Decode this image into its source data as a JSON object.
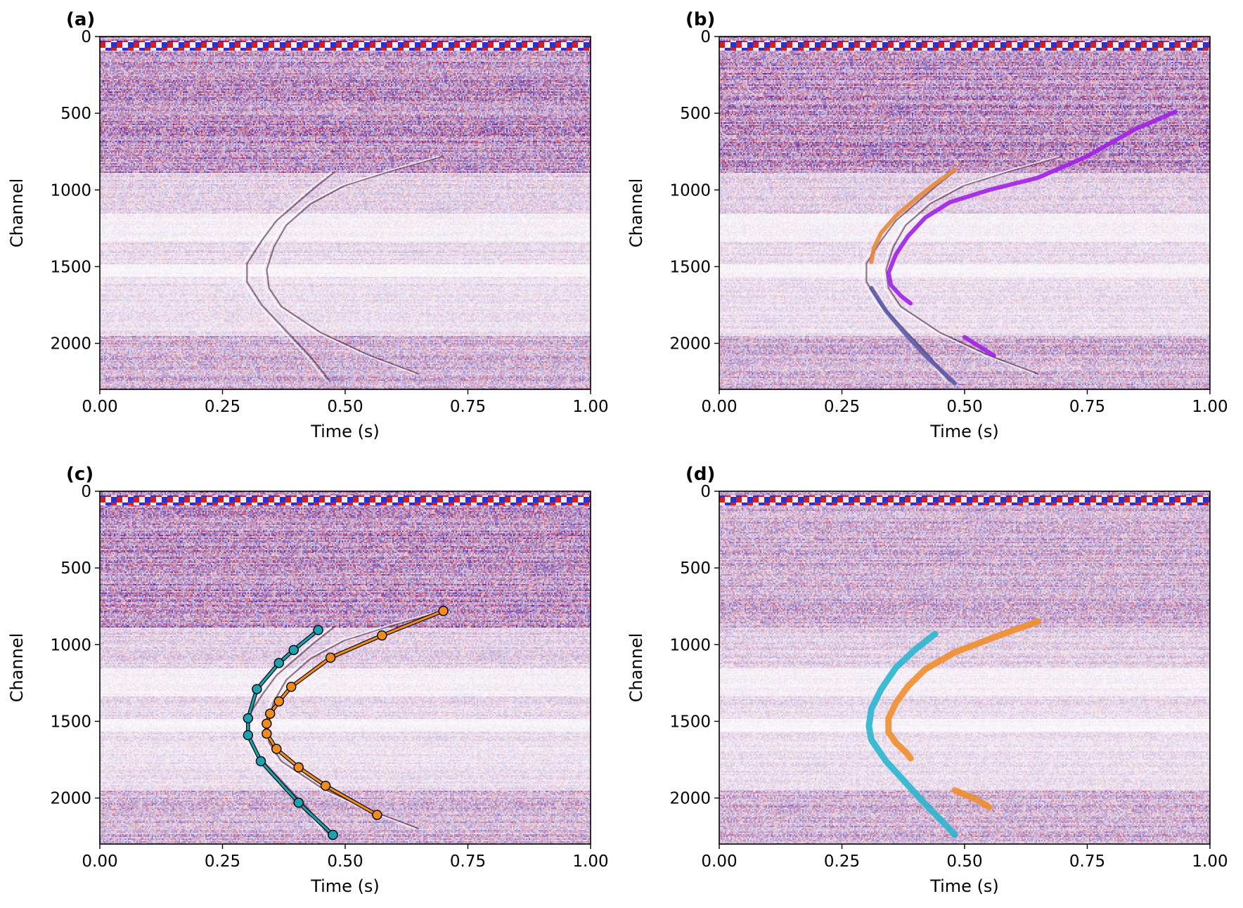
{
  "figure": {
    "background": "#ffffff",
    "seismic_colors": {
      "negative": "#2030d0",
      "neutral": "#ffffff",
      "positive": "#d01818",
      "tint": "#8a3a8f"
    }
  },
  "chart_data": [
    {
      "type": "heatmap",
      "panel_label": "(a)",
      "xlabel": "Time (s)",
      "ylabel": "Channel",
      "xlim": [
        0,
        1
      ],
      "ylim": [
        2300,
        0
      ],
      "y_inverted": true,
      "x_ticks": [
        "0.00",
        "0.25",
        "0.50",
        "0.75",
        "1.00"
      ],
      "y_ticks": [
        "0",
        "500",
        "1000",
        "1500",
        "2000"
      ],
      "colormap": "seismic",
      "overlay_curves": []
    },
    {
      "type": "heatmap",
      "panel_label": "(b)",
      "xlabel": "Time (s)",
      "ylabel": "Channel",
      "xlim": [
        0,
        1
      ],
      "ylim": [
        2300,
        0
      ],
      "y_inverted": true,
      "x_ticks": [
        "0.00",
        "0.25",
        "0.50",
        "0.75",
        "1.00"
      ],
      "y_ticks": [
        "0",
        "500",
        "1000",
        "1500",
        "2000"
      ],
      "colormap": "seismic",
      "overlay_curves": [
        {
          "color": "#e6873a",
          "x": [
            0.48,
            0.44,
            0.4,
            0.36,
            0.33,
            0.315,
            0.31
          ],
          "y": [
            870,
            960,
            1060,
            1170,
            1280,
            1380,
            1470
          ]
        },
        {
          "color": "#a020e8",
          "x": [
            0.93,
            0.85,
            0.75,
            0.65,
            0.55,
            0.47,
            0.42,
            0.385,
            0.36,
            0.345,
            0.35,
            0.37,
            0.39
          ],
          "y": [
            490,
            600,
            780,
            920,
            1000,
            1080,
            1180,
            1300,
            1420,
            1540,
            1620,
            1690,
            1740
          ]
        },
        {
          "color": "#a020e8",
          "x": [
            0.5,
            0.53,
            0.56
          ],
          "y": [
            1960,
            2020,
            2080
          ]
        },
        {
          "color": "#5a5aa8",
          "x": [
            0.31,
            0.34,
            0.38,
            0.42,
            0.46,
            0.48
          ],
          "y": [
            1640,
            1790,
            1940,
            2080,
            2200,
            2260
          ]
        }
      ]
    },
    {
      "type": "line",
      "panel_label": "(c)",
      "xlabel": "Time (s)",
      "ylabel": "Channel",
      "xlim": [
        0,
        1
      ],
      "ylim": [
        2300,
        0
      ],
      "y_inverted": true,
      "x_ticks": [
        "0.00",
        "0.25",
        "0.50",
        "0.75",
        "1.00"
      ],
      "y_ticks": [
        "0",
        "500",
        "1000",
        "1500",
        "2000"
      ],
      "colormap": "seismic",
      "series": [
        {
          "color": "#1aa3b0",
          "x": [
            0.445,
            0.395,
            0.365,
            0.32,
            0.302,
            0.302,
            0.328,
            0.405,
            0.475
          ],
          "y": [
            905,
            1035,
            1120,
            1290,
            1480,
            1590,
            1760,
            2030,
            2240
          ]
        },
        {
          "color": "#f08c1e",
          "x": [
            0.7,
            0.575,
            0.47,
            0.39,
            0.365,
            0.347,
            0.34,
            0.34,
            0.36,
            0.405,
            0.46,
            0.565
          ],
          "y": [
            780,
            940,
            1085,
            1275,
            1370,
            1450,
            1515,
            1580,
            1680,
            1800,
            1920,
            2110
          ]
        }
      ]
    },
    {
      "type": "heatmap",
      "panel_label": "(d)",
      "xlabel": "Time (s)",
      "ylabel": "Channel",
      "xlim": [
        0,
        1
      ],
      "ylim": [
        2300,
        0
      ],
      "y_inverted": true,
      "x_ticks": [
        "0.00",
        "0.25",
        "0.50",
        "0.75",
        "1.00"
      ],
      "y_ticks": [
        "0",
        "500",
        "1000",
        "1500",
        "2000"
      ],
      "colormap": "seismic",
      "overlay_curves": [
        {
          "color": "#2ab6cf",
          "x": [
            0.44,
            0.4,
            0.36,
            0.33,
            0.31,
            0.305,
            0.31,
            0.34,
            0.38,
            0.42,
            0.46,
            0.48
          ],
          "y": [
            930,
            1030,
            1150,
            1290,
            1420,
            1530,
            1620,
            1760,
            1900,
            2040,
            2170,
            2240
          ]
        },
        {
          "color": "#ee8e2e",
          "x": [
            0.65,
            0.57,
            0.48,
            0.42,
            0.385,
            0.36,
            0.345,
            0.345,
            0.36,
            0.38,
            0.39
          ],
          "y": [
            850,
            940,
            1050,
            1160,
            1270,
            1380,
            1480,
            1570,
            1640,
            1700,
            1740
          ]
        },
        {
          "color": "#ee8e2e",
          "x": [
            0.48,
            0.51,
            0.53,
            0.55
          ],
          "y": [
            1950,
            1990,
            2020,
            2060
          ]
        }
      ]
    }
  ]
}
